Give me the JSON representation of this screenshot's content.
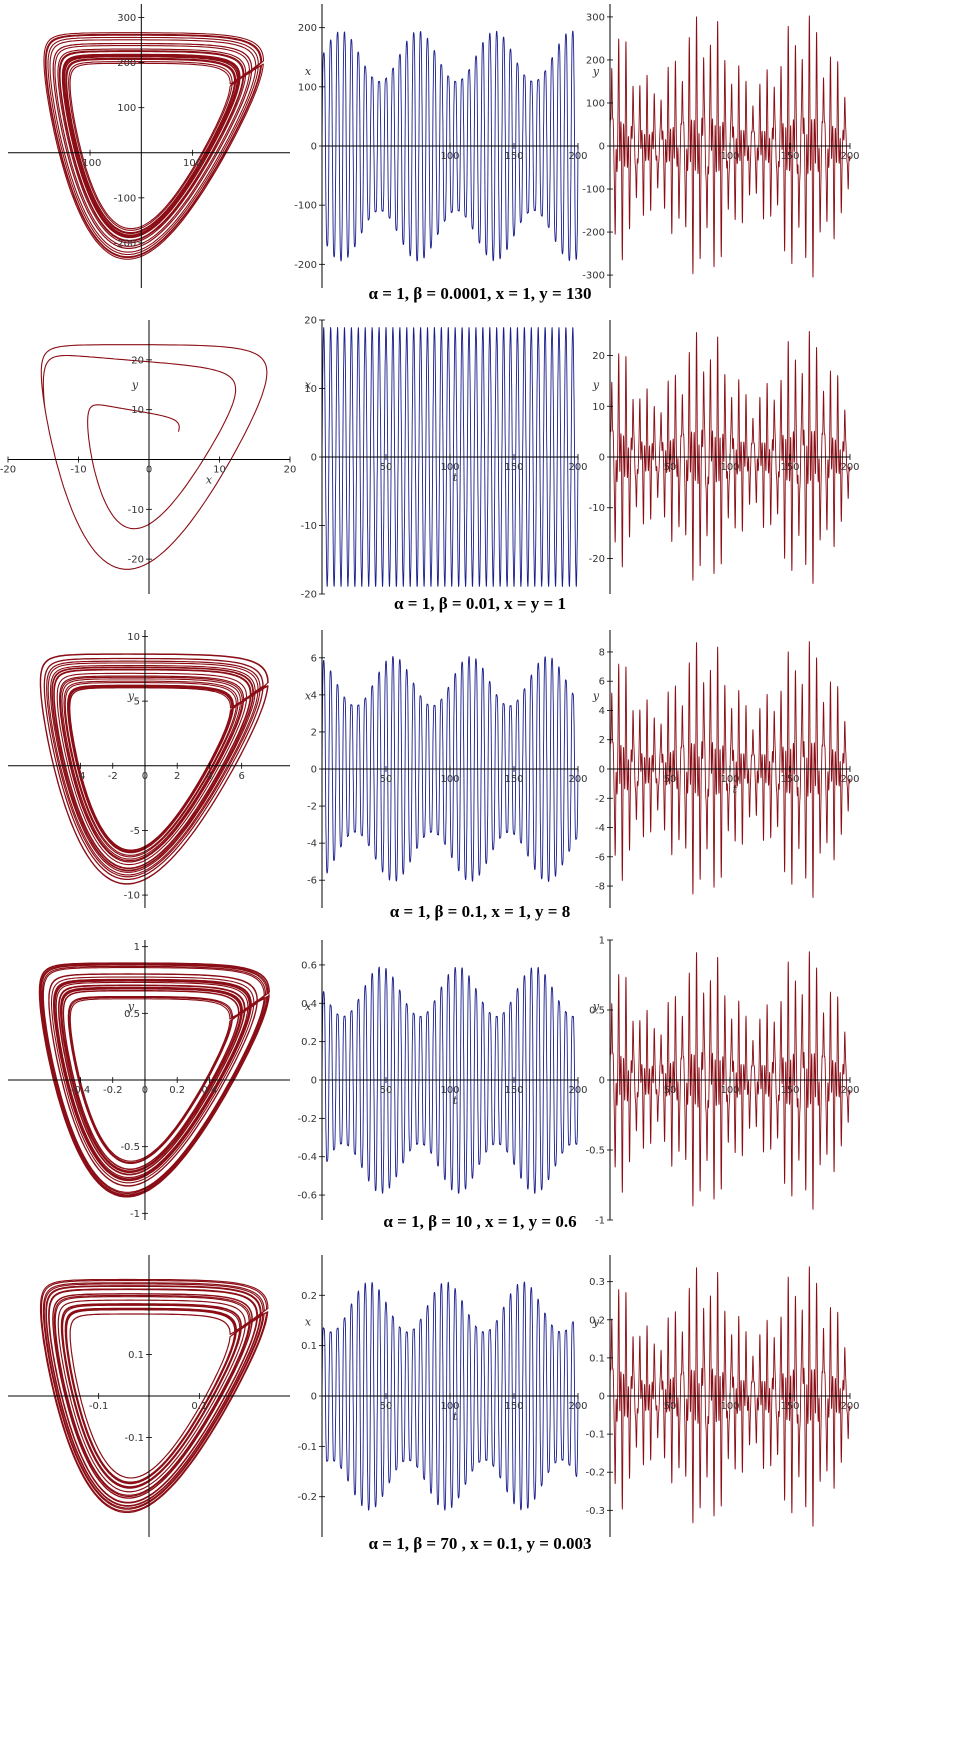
{
  "colors": {
    "phase": "#8b0e16",
    "x_series": "#1a1f8c",
    "y_series": "#8b0e16",
    "axis": "#000000"
  },
  "chart_data": [
    {
      "type": "line",
      "caption": "α = 1, β = 0.0001, x = 1, y = 130",
      "panels": [
        {
          "kind": "phase",
          "xlabel": "",
          "ylabel": "",
          "xlim": [
            -260,
            290
          ],
          "ylim": [
            -300,
            330
          ],
          "xticks": [
            "-100",
            "100"
          ],
          "yticks": [
            "300",
            "200",
            "100",
            "-100",
            "-200"
          ]
        },
        {
          "kind": "x_t",
          "xlabel": "",
          "ylabel": "x",
          "xlim": [
            0,
            200
          ],
          "ylim": [
            -240,
            240
          ],
          "xticks": [
            "100",
            "150",
            "200"
          ],
          "yticks": [
            "200",
            "100",
            "0",
            "-100",
            "-200"
          ]
        },
        {
          "kind": "y_t",
          "xlabel": "",
          "ylabel": "y",
          "xlim": [
            0,
            200
          ],
          "ylim": [
            -330,
            330
          ],
          "xticks": [
            "100",
            "150",
            "200"
          ],
          "yticks": [
            "300",
            "200",
            "100",
            "0",
            "-100",
            "-200",
            "-300"
          ]
        }
      ]
    },
    {
      "type": "line",
      "caption": "α = 1, β = 0.01, x = y = 1",
      "panels": [
        {
          "kind": "phase",
          "xlabel": "x",
          "ylabel": "y",
          "xlim": [
            -20,
            20
          ],
          "ylim": [
            -27,
            28
          ],
          "xticks": [
            "-20",
            "-10",
            "0",
            "10",
            "20"
          ],
          "yticks": [
            "20",
            "10",
            "-10",
            "-20"
          ]
        },
        {
          "kind": "x_t",
          "xlabel": "t",
          "ylabel": "x",
          "xlim": [
            0,
            200
          ],
          "ylim": [
            -20,
            20
          ],
          "xticks": [
            "50",
            "100",
            "150",
            "200"
          ],
          "yticks": [
            "20",
            "10",
            "0",
            "-10",
            "-20"
          ]
        },
        {
          "kind": "y_t",
          "xlabel": "",
          "ylabel": "y",
          "xlim": [
            0,
            200
          ],
          "ylim": [
            -27,
            27
          ],
          "xticks": [
            "50",
            "100",
            "150",
            "200"
          ],
          "yticks": [
            "20",
            "10",
            "0",
            "-10",
            "-20"
          ]
        }
      ]
    },
    {
      "type": "line",
      "caption": "α = 1, β = 0.1, x = 1, y = 8",
      "panels": [
        {
          "kind": "phase",
          "xlabel": "",
          "ylabel": "y",
          "xlim": [
            -8.5,
            9
          ],
          "ylim": [
            -11,
            10.5
          ],
          "xticks": [
            "-4",
            "-2",
            "0",
            "2",
            "4",
            "6"
          ],
          "yticks": [
            "10",
            "5",
            "-5",
            "-10"
          ]
        },
        {
          "kind": "x_t",
          "xlabel": "",
          "ylabel": "x",
          "xlim": [
            0,
            200
          ],
          "ylim": [
            -7.5,
            7.5
          ],
          "xticks": [
            "50",
            "100",
            "150",
            "200"
          ],
          "yticks": [
            "6",
            "4",
            "2",
            "0",
            "-2",
            "-4",
            "-6"
          ]
        },
        {
          "kind": "y_t",
          "xlabel": "t",
          "ylabel": "y",
          "xlim": [
            0,
            200
          ],
          "ylim": [
            -9.5,
            9.5
          ],
          "xticks": [
            "50",
            "100",
            "150",
            "200"
          ],
          "yticks": [
            "8",
            "6",
            "4",
            "2",
            "0",
            "-2",
            "-4",
            "-6",
            "-8"
          ]
        }
      ]
    },
    {
      "type": "line",
      "caption": "α = 1, β = 10 , x = 1,  y = 0.6",
      "panels": [
        {
          "kind": "phase",
          "xlabel": "",
          "ylabel": "y",
          "xlim": [
            -0.85,
            0.9
          ],
          "ylim": [
            -1.05,
            1.05
          ],
          "xticks": [
            "-0.4",
            "-0.2",
            "0",
            "0.2",
            "0.4"
          ],
          "yticks": [
            "1",
            "0.5",
            "-0.5",
            "-1"
          ]
        },
        {
          "kind": "x_t",
          "xlabel": "t",
          "ylabel": "x",
          "xlim": [
            0,
            200
          ],
          "ylim": [
            -0.73,
            0.73
          ],
          "xticks": [
            "50",
            "100",
            "150",
            "200"
          ],
          "yticks": [
            "0.6",
            "0.4",
            "0.2",
            "0",
            "-0.2",
            "-0.4",
            "-0.6"
          ]
        },
        {
          "kind": "y_t",
          "xlabel": "",
          "ylabel": "y",
          "xlim": [
            0,
            200
          ],
          "ylim": [
            -1.0,
            1.0
          ],
          "xticks": [
            "50",
            "100",
            "150",
            "200"
          ],
          "yticks": [
            "1",
            "0.5",
            "0",
            "-0.5",
            "-1"
          ]
        }
      ]
    },
    {
      "type": "line",
      "caption": "α = 1, β = 70 , x = 0.1, y = 0.003",
      "panels": [
        {
          "kind": "phase",
          "xlabel": "",
          "ylabel": "",
          "xlim": [
            -0.28,
            0.28
          ],
          "ylim": [
            -0.34,
            0.34
          ],
          "xticks": [
            "-0.1",
            "0.1"
          ],
          "yticks": [
            "0.1",
            "-0.1"
          ]
        },
        {
          "kind": "x_t",
          "xlabel": "t",
          "ylabel": "x",
          "xlim": [
            0,
            200
          ],
          "ylim": [
            -0.28,
            0.28
          ],
          "xticks": [
            "50",
            "100",
            "150",
            "200"
          ],
          "yticks": [
            "0.2",
            "0.1",
            "0",
            "-0.1",
            "-0.2"
          ]
        },
        {
          "kind": "y_t",
          "xlabel": "",
          "ylabel": "y",
          "xlim": [
            0,
            200
          ],
          "ylim": [
            -0.37,
            0.37
          ],
          "xticks": [
            "50",
            "100",
            "150",
            "200"
          ],
          "yticks": [
            "0.3",
            "0.2",
            "0.1",
            "0",
            "-0.1",
            "-0.2",
            "-0.3"
          ]
        }
      ]
    }
  ]
}
